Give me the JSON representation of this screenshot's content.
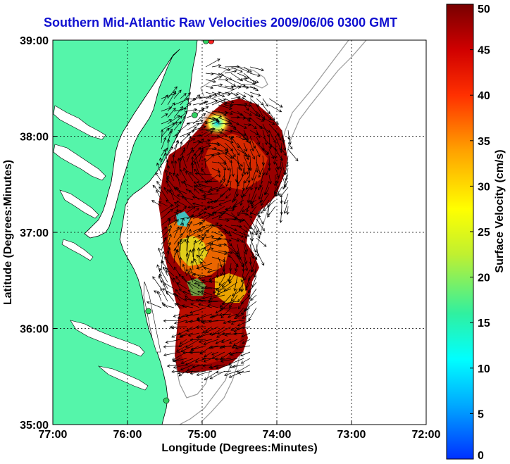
{
  "title": "Southern Mid-Atlantic Raw Velocities 2009/06/06 0300 GMT",
  "map": {
    "xlabel": "Longitude (Degrees:Minutes)",
    "ylabel": "Latitude (Degrees:Minutes)",
    "lon_range": [
      -77,
      -72
    ],
    "lat_range": [
      35,
      39
    ],
    "x_ticks": [
      {
        "value": -77,
        "label": "77:00"
      },
      {
        "value": -76,
        "label": "76:00"
      },
      {
        "value": -75,
        "label": "75:00"
      },
      {
        "value": -74,
        "label": "74:00"
      },
      {
        "value": -73,
        "label": "73:00"
      },
      {
        "value": -72,
        "label": "72:00"
      }
    ],
    "y_ticks": [
      {
        "value": 39,
        "label": "39:00"
      },
      {
        "value": 38,
        "label": "38:00"
      },
      {
        "value": 37,
        "label": "37:00"
      },
      {
        "value": 36,
        "label": "36:00"
      },
      {
        "value": 35,
        "label": "35:00"
      }
    ],
    "grid": true,
    "colors": {
      "land": "#55f5aa",
      "water": "#ffffff",
      "bathymetry": "#9a9a9a",
      "grid": "#000000"
    }
  },
  "colorbar": {
    "label": "Surface Velocity (cm/s)",
    "min": 0,
    "max": 50,
    "ticks": [
      {
        "value": 0,
        "label": "0"
      },
      {
        "value": 5,
        "label": "5"
      },
      {
        "value": 10,
        "label": "10"
      },
      {
        "value": 15,
        "label": "15"
      },
      {
        "value": 20,
        "label": "20"
      },
      {
        "value": 25,
        "label": "25"
      },
      {
        "value": 30,
        "label": "30"
      },
      {
        "value": 35,
        "label": "35"
      },
      {
        "value": 40,
        "label": "40"
      },
      {
        "value": 45,
        "label": "45"
      },
      {
        "value": 50,
        "label": "50"
      }
    ],
    "colormap": "jet-like"
  },
  "stations": [
    {
      "lon": -74.88,
      "lat": 38.99,
      "color": "#ff2020"
    },
    {
      "lon": -74.95,
      "lat": 38.99,
      "color": "#30d060"
    },
    {
      "lon": -75.1,
      "lat": 38.22,
      "color": "#30d060"
    },
    {
      "lon": -75.72,
      "lat": 36.18,
      "color": "#30d060"
    },
    {
      "lon": -75.48,
      "lat": 35.25,
      "color": "#30d060"
    }
  ]
}
